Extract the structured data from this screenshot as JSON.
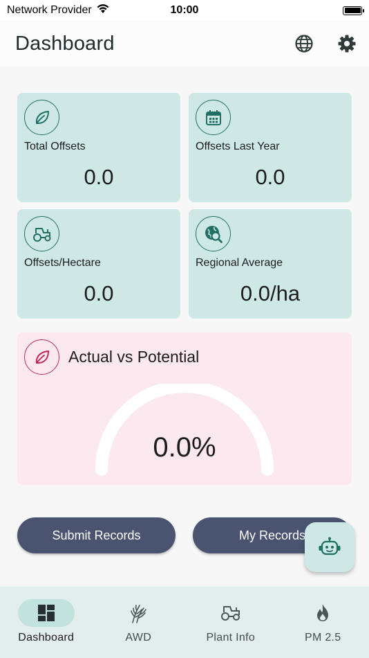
{
  "status_bar": {
    "carrier": "Network Provider",
    "time": "10:00"
  },
  "header": {
    "title": "Dashboard",
    "language_icon": "globe-icon",
    "settings_icon": "gear-icon"
  },
  "cards": [
    {
      "label": "Total Offsets",
      "value": "0.0",
      "icon": "leaf-icon"
    },
    {
      "label": "Offsets Last Year",
      "value": "0.0",
      "icon": "calendar-icon"
    },
    {
      "label": "Offsets/Hectare",
      "value": "0.0",
      "icon": "tractor-icon"
    },
    {
      "label": "Regional Average",
      "value": "0.0/ha",
      "icon": "globe-search-icon"
    }
  ],
  "actual_vs_potential": {
    "title": "Actual vs Potential",
    "value": "0.0%",
    "progress": 0.0
  },
  "buttons": {
    "submit": "Submit Records",
    "my_records": "My Records"
  },
  "fab": {
    "icon": "robot-icon"
  },
  "bottom_nav": [
    {
      "label": "Dashboard",
      "icon": "dashboard-icon",
      "active": true
    },
    {
      "label": "AWD",
      "icon": "wheat-icon",
      "active": false
    },
    {
      "label": "Plant Info",
      "icon": "tractor-icon",
      "active": false
    },
    {
      "label": "PM 2.5",
      "icon": "fire-icon",
      "active": false
    }
  ],
  "colors": {
    "accent": "#1f6f63",
    "card_bg": "#cde8e5",
    "pink_card_bg": "#fbe9ef",
    "pink_accent": "#c2285d",
    "button_bg": "#4a5470"
  }
}
